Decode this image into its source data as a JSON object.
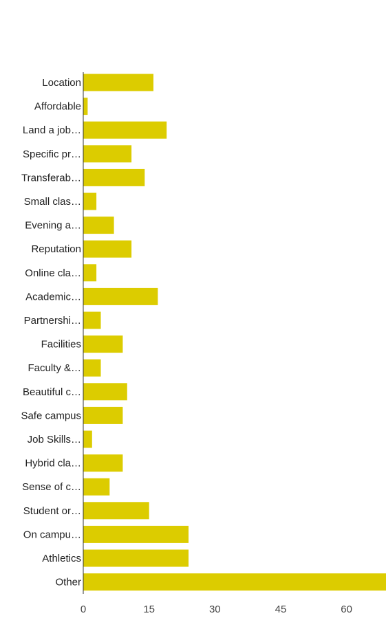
{
  "chart_data": {
    "type": "bar",
    "orientation": "horizontal",
    "categories": [
      "Location",
      "Affordable",
      "Land a job…",
      "Specific pr…",
      "Transferab…",
      "Small clas…",
      "Evening a…",
      "Reputation",
      "Online cla…",
      "Academic…",
      "Partnershi…",
      "Facilities",
      "Faculty &…",
      "Beautiful c…",
      "Safe campus",
      "Job Skills…",
      "Hybrid cla…",
      "Sense of c…",
      "Student or…",
      "On campu…",
      "Athletics",
      "Other"
    ],
    "values": [
      16,
      1,
      19,
      11,
      14,
      3,
      7,
      11,
      3,
      17,
      4,
      9,
      4,
      10,
      9,
      2,
      9,
      6,
      15,
      24,
      24,
      69
    ],
    "xticks": [
      0,
      15,
      30,
      45,
      60
    ],
    "xlim": [
      0,
      69
    ],
    "bar_color": "#dccc00",
    "axis_color": "#333333",
    "grid": false,
    "title": "",
    "xlabel": "",
    "ylabel": ""
  }
}
